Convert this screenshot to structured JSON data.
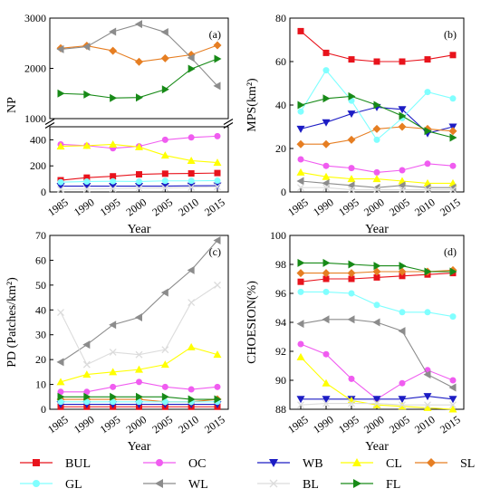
{
  "chart_data": [
    {
      "type": "line",
      "panel": "(a)",
      "xlabel": "Year",
      "ylabel": "NP",
      "x": [
        1985,
        1990,
        1995,
        2000,
        2005,
        2010,
        2015
      ],
      "axis_break": true,
      "y_lower_range": [
        0,
        500
      ],
      "y_lower_ticks": [
        0,
        200,
        400
      ],
      "y_upper_range": [
        1000,
        3000
      ],
      "y_upper_ticks": [
        1000,
        2000,
        3000
      ],
      "series": [
        {
          "name": "BUL",
          "values": [
            90,
            110,
            120,
            135,
            140,
            142,
            145
          ]
        },
        {
          "name": "OC",
          "values": [
            365,
            355,
            335,
            350,
            400,
            418,
            428
          ]
        },
        {
          "name": "WB",
          "values": [
            45,
            45,
            45,
            45,
            45,
            47,
            48
          ]
        },
        {
          "name": "CL",
          "values": [
            350,
            355,
            365,
            345,
            280,
            240,
            225
          ]
        },
        {
          "name": "SL",
          "values": [
            2400,
            2450,
            2350,
            2130,
            2200,
            2270,
            2460
          ]
        },
        {
          "name": "GL",
          "values": [
            75,
            80,
            82,
            80,
            85,
            85,
            87
          ]
        },
        {
          "name": "WL",
          "values": [
            2380,
            2430,
            2730,
            2880,
            2720,
            2210,
            1650
          ]
        },
        {
          "name": "BL",
          "values": [
            20,
            22,
            25,
            28,
            30,
            35,
            40
          ]
        },
        {
          "name": "FL",
          "values": [
            1500,
            1480,
            1410,
            1420,
            1580,
            1990,
            2190
          ]
        }
      ]
    },
    {
      "type": "line",
      "panel": "(b)",
      "xlabel": "Year",
      "ylabel": "MPS(km²)",
      "x": [
        1985,
        1990,
        1995,
        2000,
        2005,
        2010,
        2015
      ],
      "ylim": [
        0,
        80
      ],
      "yticks": [
        0,
        20,
        40,
        60,
        80
      ],
      "series": [
        {
          "name": "BUL",
          "values": [
            74,
            64,
            61,
            60,
            60,
            61,
            63
          ]
        },
        {
          "name": "OC",
          "values": [
            15,
            12,
            11,
            9,
            10,
            13,
            12
          ]
        },
        {
          "name": "WB",
          "values": [
            29,
            32,
            36,
            39,
            38,
            27,
            30
          ]
        },
        {
          "name": "CL",
          "values": [
            9,
            7,
            6,
            6,
            5,
            4,
            4
          ]
        },
        {
          "name": "SL",
          "values": [
            22,
            22,
            24,
            29,
            30,
            29,
            28
          ]
        },
        {
          "name": "GL",
          "values": [
            37,
            56,
            42,
            24,
            34,
            46,
            43
          ]
        },
        {
          "name": "WL",
          "values": [
            5,
            4,
            3,
            2,
            3,
            2,
            2
          ]
        },
        {
          "name": "BL",
          "values": [
            2,
            2,
            1,
            1,
            1,
            1,
            1
          ]
        },
        {
          "name": "FL",
          "values": [
            40,
            43,
            44,
            40,
            35,
            28,
            25
          ]
        }
      ]
    },
    {
      "type": "line",
      "panel": "(c)",
      "xlabel": "Year",
      "ylabel": "PD (Patches/km²)",
      "x": [
        1985,
        1990,
        1995,
        2000,
        2005,
        2010,
        2015
      ],
      "ylim": [
        0,
        70
      ],
      "yticks": [
        0,
        10,
        20,
        30,
        40,
        50,
        60,
        70
      ],
      "series": [
        {
          "name": "BUL",
          "values": [
            1,
            1,
            1,
            1,
            1,
            1,
            1
          ]
        },
        {
          "name": "OC",
          "values": [
            7,
            7,
            9,
            11,
            9,
            8,
            9
          ]
        },
        {
          "name": "WB",
          "values": [
            2,
            2,
            2,
            2,
            2,
            2,
            2
          ]
        },
        {
          "name": "CL",
          "values": [
            11,
            14,
            15,
            16,
            18,
            25,
            22
          ]
        },
        {
          "name": "SL",
          "values": [
            4,
            4,
            4,
            4,
            3,
            3,
            4
          ]
        },
        {
          "name": "GL",
          "values": [
            3,
            3,
            3,
            3,
            3,
            3,
            3
          ]
        },
        {
          "name": "WL",
          "values": [
            19,
            26,
            34,
            37,
            47,
            56,
            68
          ]
        },
        {
          "name": "BL",
          "values": [
            39,
            18,
            23,
            22,
            24,
            43,
            50
          ]
        },
        {
          "name": "FL",
          "values": [
            5,
            5,
            5,
            5,
            5,
            4,
            4
          ]
        }
      ]
    },
    {
      "type": "line",
      "panel": "(d)",
      "xlabel": "Year",
      "ylabel": "CHOESION(%)",
      "x": [
        1985,
        1990,
        1995,
        2000,
        2005,
        2010,
        2015
      ],
      "ylim": [
        88,
        100
      ],
      "yticks": [
        88,
        90,
        92,
        94,
        96,
        98,
        100
      ],
      "series": [
        {
          "name": "BUL",
          "values": [
            96.8,
            97.0,
            97.0,
            97.1,
            97.2,
            97.3,
            97.4
          ]
        },
        {
          "name": "OC",
          "values": [
            92.5,
            91.8,
            90.1,
            88.7,
            89.8,
            90.7,
            90.0
          ]
        },
        {
          "name": "WB",
          "values": [
            88.7,
            88.7,
            88.7,
            88.7,
            88.7,
            88.9,
            88.7
          ]
        },
        {
          "name": "CL",
          "values": [
            91.6,
            89.8,
            88.6,
            88.3,
            88.2,
            88.1,
            88.0
          ]
        },
        {
          "name": "SL",
          "values": [
            97.4,
            97.4,
            97.4,
            97.5,
            97.5,
            97.5,
            97.6
          ]
        },
        {
          "name": "GL",
          "values": [
            96.1,
            96.1,
            96.0,
            95.2,
            94.7,
            94.7,
            94.4
          ]
        },
        {
          "name": "WL",
          "values": [
            93.9,
            94.2,
            94.2,
            94.0,
            93.4,
            90.4,
            89.5
          ]
        },
        {
          "name": "BL",
          "values": [
            88.3,
            88.4,
            88.4,
            88.4,
            88.3,
            88.3,
            88.3
          ]
        },
        {
          "name": "FL",
          "values": [
            98.1,
            98.1,
            98.0,
            97.9,
            97.9,
            97.5,
            97.5
          ]
        }
      ]
    }
  ],
  "legend": [
    {
      "name": "BUL",
      "color": "#e8131c",
      "marker": "square"
    },
    {
      "name": "OC",
      "color": "#f05cf0",
      "marker": "circle"
    },
    {
      "name": "WB",
      "color": "#1c1cc4",
      "marker": "triangle-down"
    },
    {
      "name": "CL",
      "color": "#ffff00",
      "marker": "triangle-up"
    },
    {
      "name": "SL",
      "color": "#e67e22",
      "marker": "diamond"
    },
    {
      "name": "GL",
      "color": "#80ffff",
      "marker": "circle"
    },
    {
      "name": "WL",
      "color": "#8c8c8c",
      "marker": "triangle-left"
    },
    {
      "name": "BL",
      "color": "#dcdcdc",
      "marker": "x"
    },
    {
      "name": "FL",
      "color": "#178a17",
      "marker": "triangle-right"
    }
  ]
}
